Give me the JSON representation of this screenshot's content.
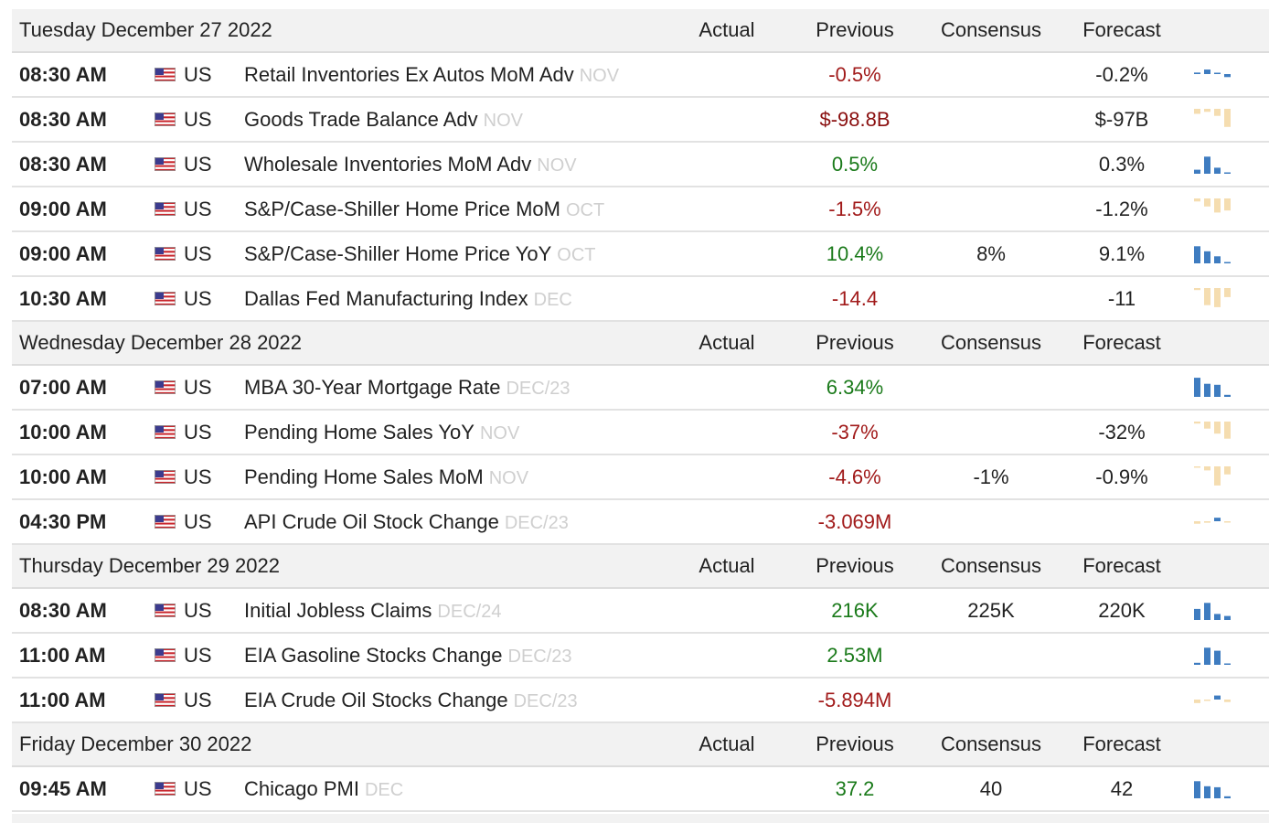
{
  "columns": {
    "actual": "Actual",
    "previous": "Previous",
    "consensus": "Consensus",
    "forecast": "Forecast"
  },
  "flag_icon": "us-flag-icon",
  "colors": {
    "negative": "#a11a1a",
    "positive": "#1a7a1a",
    "spark_blue": "#3e7cc0",
    "spark_tan": "#f5ddb0"
  },
  "days": [
    {
      "date": "Tuesday December 27 2022",
      "events": [
        {
          "time": "08:30 AM",
          "country": "US",
          "name": "Retail Inventories Ex Autos MoM Adv",
          "period": "NOV",
          "previous": "-0.5%",
          "previous_color": "neg",
          "consensus": "",
          "forecast": "-0.2%",
          "spark_color": "blue",
          "spark": [
            0.15,
            0.45,
            0.1,
            -0.3
          ]
        },
        {
          "time": "08:30 AM",
          "country": "US",
          "name": "Goods Trade Balance Adv",
          "period": "NOV",
          "previous": "$-98.8B",
          "previous_color": "dark",
          "consensus": "",
          "forecast": "$-97B",
          "spark_color": "tan",
          "spark": [
            -0.25,
            -0.15,
            -0.35,
            -0.9
          ]
        },
        {
          "time": "08:30 AM",
          "country": "US",
          "name": "Wholesale Inventories MoM Adv",
          "period": "NOV",
          "previous": "0.5%",
          "previous_color": "pos",
          "consensus": "",
          "forecast": "0.3%",
          "spark_color": "blue",
          "spark": [
            0.2,
            0.85,
            0.3,
            0.05
          ]
        },
        {
          "time": "09:00 AM",
          "country": "US",
          "name": "S&P/Case-Shiller Home Price MoM",
          "period": "OCT",
          "previous": "-1.5%",
          "previous_color": "neg",
          "consensus": "",
          "forecast": "-1.2%",
          "spark_color": "tan",
          "spark": [
            -0.15,
            -0.4,
            -0.7,
            -0.6
          ]
        },
        {
          "time": "09:00 AM",
          "country": "US",
          "name": "S&P/Case-Shiller Home Price YoY",
          "period": "OCT",
          "previous": "10.4%",
          "previous_color": "pos",
          "consensus": "8%",
          "forecast": "9.1%",
          "spark_color": "blue",
          "spark": [
            0.85,
            0.6,
            0.35,
            0.05
          ]
        },
        {
          "time": "10:30 AM",
          "country": "US",
          "name": "Dallas Fed Manufacturing Index",
          "period": "DEC",
          "previous": "-14.4",
          "previous_color": "neg",
          "consensus": "",
          "forecast": "-11",
          "spark_color": "tan",
          "spark": [
            -0.1,
            -0.85,
            -0.95,
            -0.45
          ]
        }
      ]
    },
    {
      "date": "Wednesday December 28 2022",
      "events": [
        {
          "time": "07:00 AM",
          "country": "US",
          "name": "MBA 30-Year Mortgage Rate",
          "period": "DEC/23",
          "previous": "6.34%",
          "previous_color": "pos",
          "consensus": "",
          "forecast": "",
          "spark_color": "blue",
          "spark": [
            0.95,
            0.65,
            0.6,
            0.1
          ]
        },
        {
          "time": "10:00 AM",
          "country": "US",
          "name": "Pending Home Sales YoY",
          "period": "NOV",
          "previous": "-37%",
          "previous_color": "neg",
          "consensus": "",
          "forecast": "-32%",
          "spark_color": "tan",
          "spark": [
            -0.1,
            -0.35,
            -0.6,
            -0.85
          ]
        },
        {
          "time": "10:00 AM",
          "country": "US",
          "name": "Pending Home Sales MoM",
          "period": "NOV",
          "previous": "-4.6%",
          "previous_color": "neg",
          "consensus": "-1%",
          "forecast": "-0.9%",
          "spark_color": "tan",
          "spark": [
            -0.05,
            -0.2,
            -0.95,
            -0.4
          ]
        },
        {
          "time": "04:30 PM",
          "country": "US",
          "name": "API Crude Oil Stock Change",
          "period": "DEC/23",
          "previous": "-3.069M",
          "previous_color": "neg",
          "consensus": "",
          "forecast": "",
          "spark_color": "mixed",
          "spark": [
            -0.25,
            -0.15,
            0.35,
            -0.1
          ]
        }
      ]
    },
    {
      "date": "Thursday December 29 2022",
      "events": [
        {
          "time": "08:30 AM",
          "country": "US",
          "name": "Initial Jobless Claims",
          "period": "DEC/24",
          "previous": "216K",
          "previous_color": "pos",
          "consensus": "225K",
          "forecast": "220K",
          "spark_color": "blue",
          "spark": [
            0.55,
            0.85,
            0.3,
            0.2
          ]
        },
        {
          "time": "11:00 AM",
          "country": "US",
          "name": "EIA Gasoline Stocks Change",
          "period": "DEC/23",
          "previous": "2.53M",
          "previous_color": "pos",
          "consensus": "",
          "forecast": "",
          "spark_color": "blue",
          "spark": [
            0.1,
            0.85,
            0.7,
            0.05
          ]
        },
        {
          "time": "11:00 AM",
          "country": "US",
          "name": "EIA Crude Oil Stocks Change",
          "period": "DEC/23",
          "previous": "-5.894M",
          "previous_color": "neg",
          "consensus": "",
          "forecast": "",
          "spark_color": "mixed",
          "spark": [
            -0.35,
            -0.1,
            0.4,
            -0.25
          ]
        }
      ]
    },
    {
      "date": "Friday December 30 2022",
      "events": [
        {
          "time": "09:45 AM",
          "country": "US",
          "name": "Chicago PMI",
          "period": "DEC",
          "previous": "37.2",
          "previous_color": "pos",
          "consensus": "40",
          "forecast": "42",
          "spark_color": "blue",
          "spark": [
            0.85,
            0.6,
            0.55,
            0.1
          ]
        }
      ]
    }
  ]
}
